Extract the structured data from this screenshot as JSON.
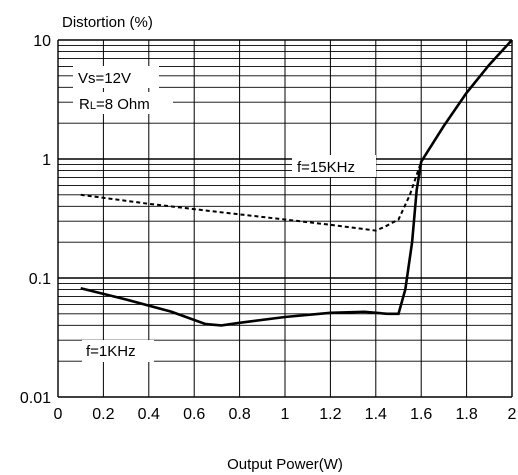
{
  "chart_data": {
    "type": "line",
    "ylabel": "Distortion (%)",
    "xlabel": "Output Power(W)",
    "xlim": [
      0,
      2
    ],
    "ylim": [
      0.01,
      10
    ],
    "yscale": "log",
    "grid": true,
    "x_ticks": [
      "0",
      "0.2",
      "0.4",
      "0.6",
      "0.8",
      "1",
      "1.2",
      "1.4",
      "1.6",
      "1.8",
      "2"
    ],
    "y_ticks": [
      "0.01",
      "0.1",
      "1",
      "10"
    ],
    "annotations": {
      "vs": "Vs=12V",
      "rl_prefix": "R",
      "rl_sub": "L",
      "rl_suffix": "=8 Ohm"
    },
    "series": [
      {
        "name": "f=15KHz",
        "style": "dashed",
        "color": "#000000",
        "x": [
          0.1,
          0.4,
          0.7,
          1.0,
          1.2,
          1.4,
          1.44,
          1.5,
          1.55,
          1.6,
          1.7,
          1.8,
          1.9,
          2.0
        ],
        "y": [
          0.5,
          0.42,
          0.36,
          0.31,
          0.28,
          0.25,
          0.27,
          0.31,
          0.5,
          0.95,
          1.9,
          3.6,
          6.2,
          10.0
        ]
      },
      {
        "name": "f=1KHz",
        "style": "solid",
        "color": "#000000",
        "x": [
          0.1,
          0.3,
          0.5,
          0.65,
          0.72,
          0.8,
          1.0,
          1.2,
          1.35,
          1.45,
          1.5,
          1.53,
          1.56,
          1.58,
          1.6,
          1.7,
          1.8,
          1.9,
          2.0
        ],
        "y": [
          0.082,
          0.066,
          0.052,
          0.041,
          0.04,
          0.042,
          0.047,
          0.051,
          0.052,
          0.05,
          0.05,
          0.08,
          0.2,
          0.55,
          0.95,
          1.9,
          3.6,
          6.2,
          10.0
        ]
      }
    ]
  }
}
